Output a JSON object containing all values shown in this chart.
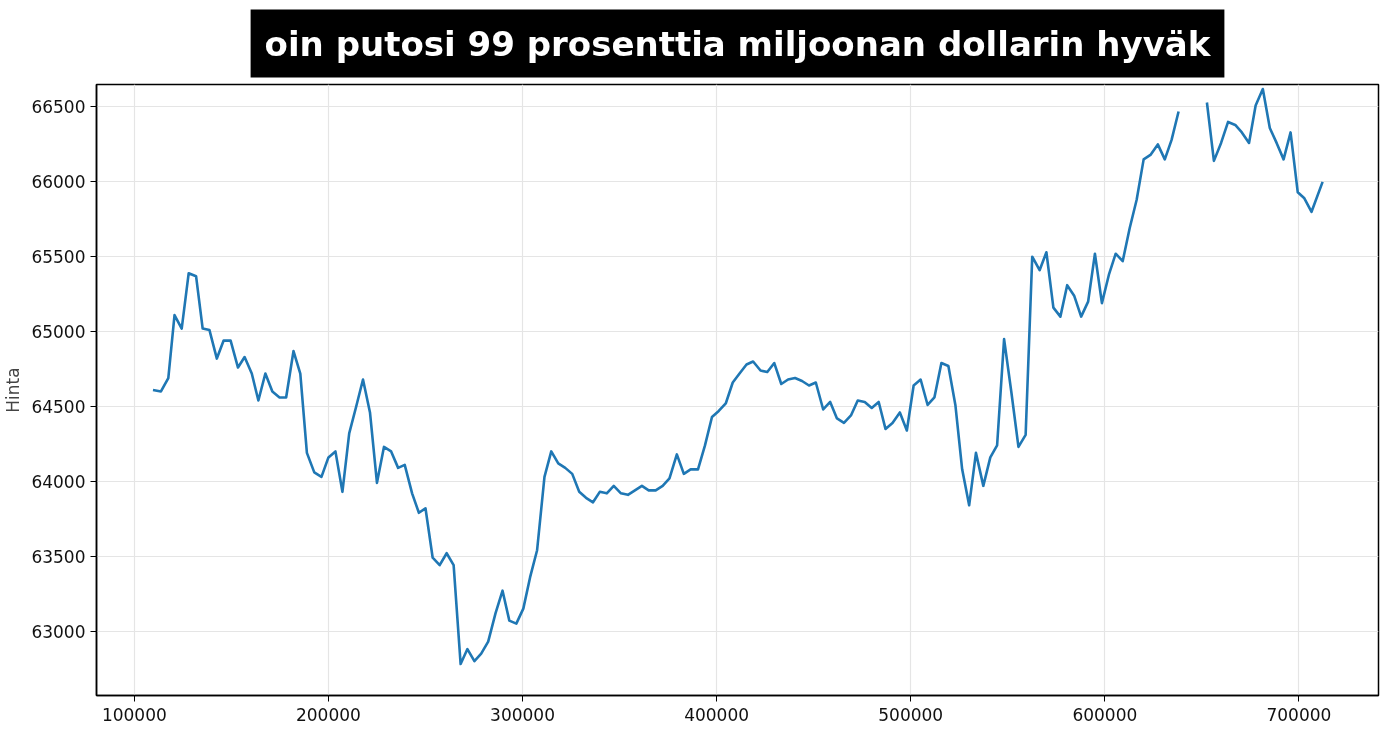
{
  "chart_data": {
    "type": "line",
    "title": "oin putosi 99 prosenttia miljoonan dollarin hyväk",
    "ylabel": "Hinta",
    "x": [
      109600,
      113700,
      117500,
      120700,
      124400,
      128000,
      131800,
      135200,
      138700,
      142500,
      146000,
      149600,
      153400,
      156800,
      160500,
      163900,
      167500,
      171100,
      174800,
      178200,
      182000,
      185500,
      188900,
      192700,
      196400,
      200000,
      203600,
      207200,
      210700,
      214300,
      217800,
      221400,
      225000,
      228600,
      232300,
      235900,
      239300,
      243100,
      246600,
      250000,
      253700,
      257300,
      260900,
      264500,
      268100,
      271600,
      275200,
      278700,
      282300,
      286100,
      289700,
      293200,
      296800,
      300400,
      303900,
      307500,
      311300,
      314800,
      318400,
      322000,
      325600,
      329200,
      332700,
      336300,
      339800,
      343400,
      347000,
      350700,
      354300,
      357900,
      361500,
      365000,
      368600,
      372200,
      375700,
      379500,
      383100,
      386600,
      390400,
      394000,
      397600,
      401100,
      404700,
      408300,
      411800,
      415400,
      418800,
      422600,
      426100,
      429700,
      433300,
      436800,
      440400,
      444000,
      447600,
      451100,
      454900,
      458500,
      462000,
      465600,
      469200,
      472700,
      476300,
      479900,
      483500,
      487000,
      490600,
      494400,
      498000,
      501500,
      505100,
      508700,
      512200,
      515800,
      519400,
      523000,
      526500,
      530100,
      533600,
      537400,
      541000,
      544500,
      548100,
      551900,
      555500,
      559200,
      562600,
      566400,
      569900,
      573500,
      577100,
      580600,
      584200,
      587800,
      591400,
      594900,
      598500,
      602100,
      605600,
      609200,
      612800,
      616400,
      620000,
      623500,
      627300,
      630900,
      634400,
      638000,
      641600,
      645200,
      648800,
      652600,
      656200,
      659900,
      663500,
      667200,
      670600,
      674300,
      677700,
      681400,
      685000,
      688500,
      692100,
      695700,
      699400,
      702800,
      706500,
      712200
    ],
    "series": [
      {
        "color": "#1f77b4",
        "values": [
          64610,
          64600,
          64690,
          65110,
          65020,
          65390,
          65370,
          65020,
          65010,
          64820,
          64940,
          64940,
          64760,
          64830,
          64720,
          64540,
          64720,
          64600,
          64560,
          64560,
          64870,
          64720,
          64190,
          64060,
          64030,
          64160,
          64200,
          63930,
          64320,
          64500,
          64680,
          64460,
          63990,
          64230,
          64200,
          64090,
          64110,
          63920,
          63790,
          63820,
          63490,
          63440,
          63520,
          63440,
          62780,
          62880,
          62800,
          62850,
          62930,
          63120,
          63270,
          63070,
          63050,
          63150,
          63360,
          63540,
          64030,
          64200,
          64120,
          64090,
          64050,
          63930,
          63890,
          63860,
          63930,
          63920,
          63970,
          63920,
          63910,
          63940,
          63970,
          63940,
          63940,
          63970,
          64020,
          64180,
          64050,
          64080,
          64080,
          64240,
          64430,
          64470,
          64520,
          64660,
          64720,
          64780,
          64800,
          64740,
          64730,
          64790,
          64650,
          64680,
          64690,
          64670,
          64640,
          64660,
          64480,
          64530,
          64420,
          64390,
          64440,
          64540,
          64530,
          64490,
          64530,
          64350,
          64390,
          64460,
          64340,
          64640,
          64680,
          64510,
          64560,
          64790,
          64770,
          64510,
          64080,
          63840,
          64190,
          63970,
          64160,
          64240,
          64950,
          64590,
          64230,
          64310,
          65500,
          65410,
          65530,
          65160,
          65100,
          65310,
          65240,
          65100,
          65200,
          65520,
          65190,
          65380,
          65520,
          65470,
          65690,
          65880,
          66150,
          66180,
          66250,
          66150,
          66280,
          66470,
          null,
          null,
          null,
          66530,
          66140,
          66260,
          66400,
          66380,
          66330,
          66260,
          66510,
          66620,
          66360,
          66260,
          66150,
          66330,
          65930,
          65890,
          65800,
          66000
        ]
      }
    ],
    "xlim": [
      80500,
      741000
    ],
    "ylim": [
      62570,
      66650
    ],
    "xticks": [
      100000,
      200000,
      300000,
      400000,
      500000,
      600000,
      700000
    ],
    "yticks": [
      63000,
      63500,
      64000,
      64500,
      65000,
      65500,
      66000,
      66500
    ],
    "grid": true
  }
}
